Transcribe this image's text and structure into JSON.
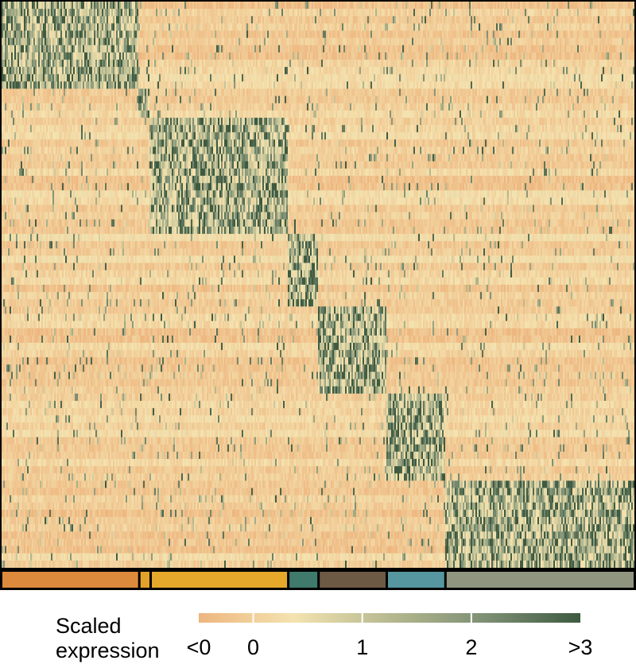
{
  "chart_data": {
    "type": "heatmap",
    "title": "",
    "xlabel": "",
    "ylabel": "",
    "legend": {
      "title_line1": "Scaled",
      "title_line2": "expression",
      "ticks": [
        {
          "value": -0.5,
          "label": "<0"
        },
        {
          "value": 0,
          "label": "0"
        },
        {
          "value": 1,
          "label": "1"
        },
        {
          "value": 2,
          "label": "2"
        },
        {
          "value": 3,
          "label": ">3"
        }
      ],
      "range": [
        -0.5,
        3
      ],
      "colors": [
        "#eeb67f",
        "#f4e3b0",
        "#b6b98f",
        "#7d9075",
        "#3e5a40"
      ],
      "placement": "bottom"
    },
    "cell_clusters": [
      {
        "index": 1,
        "color": "#de8a3c",
        "share": 0.215
      },
      {
        "index": 2,
        "color": "#e2a22a",
        "share": 0.018
      },
      {
        "index": 3,
        "color": "#e5a82a",
        "share": 0.218
      },
      {
        "index": 4,
        "color": "#3f7a6c",
        "share": 0.048
      },
      {
        "index": 5,
        "color": "#6d5a45",
        "share": 0.108
      },
      {
        "index": 6,
        "color": "#5596a0",
        "share": 0.093
      },
      {
        "index": 7,
        "color": "#8f957f",
        "share": 0.3
      }
    ],
    "gene_blocks": [
      {
        "cluster": 1,
        "rows": 12
      },
      {
        "cluster": 2,
        "rows": 4
      },
      {
        "cluster": 3,
        "rows": 16
      },
      {
        "cluster": 4,
        "rows": 10
      },
      {
        "cluster": 5,
        "rows": 12
      },
      {
        "cluster": 6,
        "rows": 12
      },
      {
        "cluster": 7,
        "rows": 12
      }
    ],
    "pattern": "block-diagonal: genes of each cluster have high scaled expression (up to >3) in cells of that cluster and low (<0 to 0) elsewhere"
  }
}
